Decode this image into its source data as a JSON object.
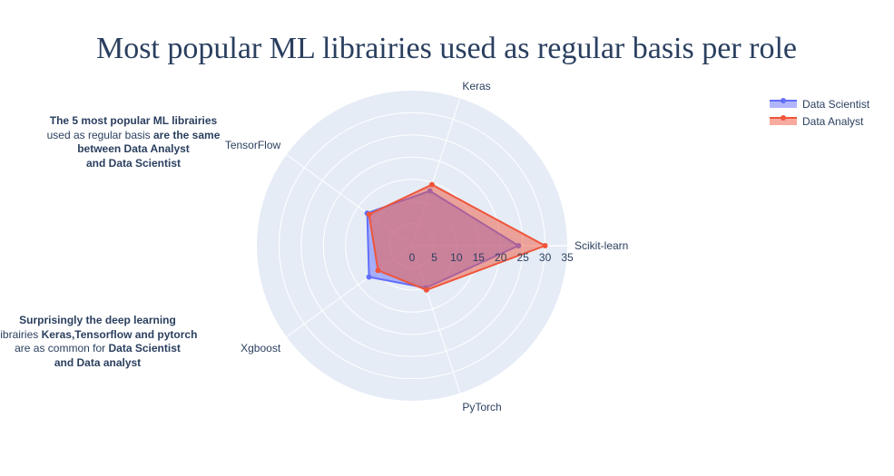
{
  "chart_data": {
    "type": "radar",
    "title": "Most popular ML librairies used as regular basis per role",
    "categories": [
      "Scikit-learn",
      "Keras",
      "TensorFlow",
      "Xgboost",
      "PyTorch"
    ],
    "radial_range": [
      0,
      35
    ],
    "radial_ticks": [
      "0",
      "5",
      "10",
      "15",
      "20",
      "25",
      "30",
      "35"
    ],
    "series": [
      {
        "name": "Data Scientist",
        "values": [
          24,
          13,
          12.5,
          12,
          10
        ],
        "color": "#636efa"
      },
      {
        "name": "Data Analyst",
        "values": [
          30,
          14.5,
          12,
          9.5,
          10.5
        ],
        "color": "#ef553b"
      }
    ],
    "legend_position": "top-right",
    "polar_bg": "#e5ecf6",
    "grid_color": "#ffffff"
  },
  "annotations": {
    "a1": {
      "l1_bold": "The 5 most popular ML librairies",
      "l2_plain": "used as regular basis ",
      "l2_bold": "are the same",
      "l3_bold": "between Data Analyst",
      "l4_bold": "and Data Scientist"
    },
    "a2": {
      "l1_bold": "Surprisingly the deep learning",
      "l2_plain": "librairies ",
      "l2_bold": "Keras,Tensorflow and pytorch",
      "l3_plain": "are as common for ",
      "l3_bold": "Data Scientist",
      "l4_bold": "and Data analyst"
    }
  }
}
